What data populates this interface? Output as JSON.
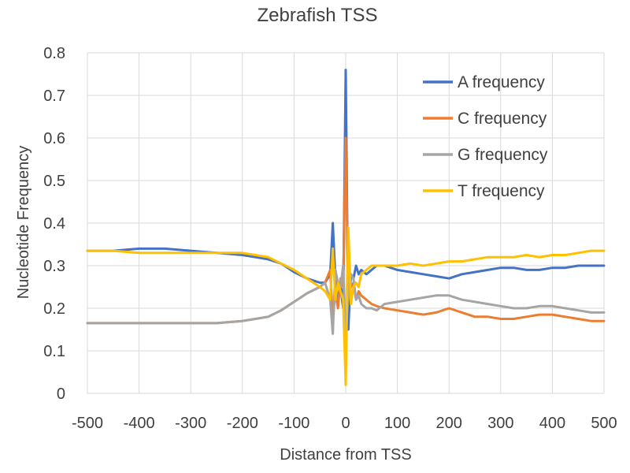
{
  "chart_data": {
    "type": "line",
    "title": "Zebrafish TSS",
    "xlabel": "Distance from TSS",
    "ylabel": "Nucleotide Frequency",
    "xlim": [
      -500,
      500
    ],
    "ylim": [
      0,
      0.8
    ],
    "x_ticks": [
      "-500",
      "-400",
      "-300",
      "-200",
      "-100",
      "0",
      "100",
      "200",
      "300",
      "400",
      "500"
    ],
    "y_ticks": [
      "0",
      "0.1",
      "0.2",
      "0.3",
      "0.4",
      "0.5",
      "0.6",
      "0.7",
      "0.8"
    ],
    "grid": true,
    "legend_position": "top-right",
    "x": [
      -500,
      -450,
      -400,
      -350,
      -300,
      -250,
      -200,
      -175,
      -150,
      -125,
      -100,
      -75,
      -50,
      -40,
      -30,
      -25,
      -20,
      -15,
      -10,
      -5,
      0,
      5,
      10,
      15,
      20,
      25,
      30,
      40,
      50,
      60,
      75,
      100,
      125,
      150,
      175,
      200,
      225,
      250,
      275,
      300,
      325,
      350,
      375,
      400,
      425,
      450,
      475,
      500
    ],
    "series": [
      {
        "name": "A frequency",
        "color": "#4472c4",
        "values": [
          0.335,
          0.335,
          0.34,
          0.34,
          0.335,
          0.33,
          0.325,
          0.32,
          0.315,
          0.305,
          0.285,
          0.27,
          0.26,
          0.26,
          0.28,
          0.4,
          0.27,
          0.22,
          0.25,
          0.2,
          0.76,
          0.15,
          0.28,
          0.27,
          0.3,
          0.28,
          0.29,
          0.28,
          0.29,
          0.3,
          0.3,
          0.29,
          0.285,
          0.28,
          0.275,
          0.27,
          0.28,
          0.285,
          0.29,
          0.295,
          0.295,
          0.29,
          0.29,
          0.295,
          0.295,
          0.3,
          0.3,
          0.3
        ]
      },
      {
        "name": "C frequency",
        "color": "#ed7d31",
        "values": [
          0.165,
          0.165,
          0.165,
          0.165,
          0.165,
          0.165,
          0.17,
          0.175,
          0.18,
          0.195,
          0.215,
          0.235,
          0.25,
          0.26,
          0.29,
          0.17,
          0.24,
          0.2,
          0.27,
          0.25,
          0.6,
          0.22,
          0.25,
          0.26,
          0.22,
          0.24,
          0.23,
          0.22,
          0.21,
          0.205,
          0.2,
          0.195,
          0.19,
          0.185,
          0.19,
          0.2,
          0.19,
          0.18,
          0.18,
          0.175,
          0.175,
          0.18,
          0.185,
          0.185,
          0.18,
          0.175,
          0.17,
          0.17
        ]
      },
      {
        "name": "G frequency",
        "color": "#a5a5a5",
        "values": [
          0.165,
          0.165,
          0.165,
          0.165,
          0.165,
          0.165,
          0.17,
          0.175,
          0.18,
          0.195,
          0.215,
          0.235,
          0.25,
          0.26,
          0.22,
          0.14,
          0.29,
          0.26,
          0.25,
          0.3,
          0.12,
          0.25,
          0.28,
          0.27,
          0.22,
          0.23,
          0.21,
          0.2,
          0.2,
          0.195,
          0.21,
          0.215,
          0.22,
          0.225,
          0.23,
          0.23,
          0.22,
          0.215,
          0.21,
          0.205,
          0.2,
          0.2,
          0.205,
          0.205,
          0.2,
          0.195,
          0.19,
          0.19
        ]
      },
      {
        "name": "T frequency",
        "color": "#ffc000",
        "values": [
          0.335,
          0.335,
          0.33,
          0.33,
          0.33,
          0.33,
          0.33,
          0.325,
          0.32,
          0.305,
          0.29,
          0.27,
          0.25,
          0.24,
          0.22,
          0.34,
          0.22,
          0.26,
          0.24,
          0.22,
          0.02,
          0.39,
          0.21,
          0.25,
          0.26,
          0.25,
          0.28,
          0.29,
          0.3,
          0.3,
          0.3,
          0.3,
          0.305,
          0.3,
          0.305,
          0.31,
          0.31,
          0.315,
          0.32,
          0.32,
          0.32,
          0.325,
          0.32,
          0.325,
          0.325,
          0.33,
          0.335,
          0.335
        ]
      }
    ]
  }
}
